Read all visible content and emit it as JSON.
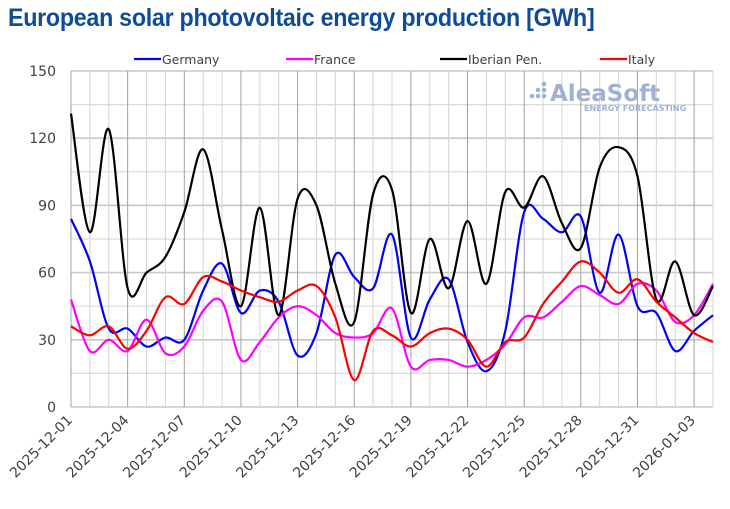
{
  "chart_data": {
    "type": "line",
    "title": "European solar photovoltaic energy production [GWh]",
    "xlabel": "",
    "ylabel": "",
    "ylim": [
      0,
      150
    ],
    "yticks": [
      0,
      30,
      60,
      90,
      120,
      150
    ],
    "grid": true,
    "legend_position": "top",
    "x": [
      "2025-12-01",
      "2025-12-02",
      "2025-12-03",
      "2025-12-04",
      "2025-12-05",
      "2025-12-06",
      "2025-12-07",
      "2025-12-08",
      "2025-12-09",
      "2025-12-10",
      "2025-12-11",
      "2025-12-12",
      "2025-12-13",
      "2025-12-14",
      "2025-12-15",
      "2025-12-16",
      "2025-12-17",
      "2025-12-18",
      "2025-12-19",
      "2025-12-20",
      "2025-12-21",
      "2025-12-22",
      "2025-12-23",
      "2025-12-24",
      "2025-12-25",
      "2025-12-26",
      "2025-12-27",
      "2025-12-28",
      "2025-12-29",
      "2025-12-30",
      "2025-12-31",
      "2026-01-01",
      "2026-01-02",
      "2026-01-03",
      "2026-01-04"
    ],
    "xtick_labels": [
      "2025-12-01",
      "2025-12-04",
      "2025-12-07",
      "2025-12-10",
      "2025-12-13",
      "2025-12-16",
      "2025-12-19",
      "2025-12-22",
      "2025-12-25",
      "2025-12-28",
      "2025-12-31",
      "2026-01-03"
    ],
    "series": [
      {
        "name": "Germany",
        "color": "#0000ff",
        "values": [
          84,
          65,
          35,
          35,
          27,
          31,
          30,
          52,
          64,
          42,
          52,
          47,
          23,
          33,
          68,
          58,
          53,
          77,
          31,
          48,
          57,
          29,
          16,
          34,
          87,
          84,
          78,
          85,
          51,
          77,
          45,
          42,
          25,
          34,
          41
        ]
      },
      {
        "name": "France",
        "color": "#ff00ff",
        "values": [
          48,
          25,
          30,
          25,
          39,
          24,
          27,
          43,
          47,
          21,
          29,
          40,
          45,
          41,
          33,
          31,
          33,
          44,
          18,
          21,
          21,
          18,
          21,
          28,
          40,
          40,
          47,
          54,
          50,
          46,
          55,
          52,
          38,
          41,
          55
        ]
      },
      {
        "name": "Iberian Pen.",
        "color": "#000000",
        "values": [
          131,
          78,
          124,
          53,
          60,
          67,
          87,
          115,
          79,
          45,
          89,
          41,
          93,
          90,
          55,
          38,
          95,
          97,
          42,
          75,
          53,
          83,
          55,
          96,
          89,
          103,
          82,
          71,
          107,
          116,
          103,
          48,
          65,
          41,
          54
        ]
      },
      {
        "name": "Italy",
        "color": "#ff0000",
        "values": [
          36,
          32,
          36,
          26,
          34,
          49,
          46,
          58,
          56,
          52,
          49,
          47,
          52,
          54,
          40,
          12,
          34,
          32,
          27,
          33,
          35,
          30,
          18,
          29,
          31,
          46,
          56,
          65,
          60,
          51,
          57,
          47,
          40,
          33,
          29
        ]
      }
    ]
  },
  "watermark": {
    "brand": "AleaSoft",
    "tagline": "ENERGY FORECASTING"
  }
}
